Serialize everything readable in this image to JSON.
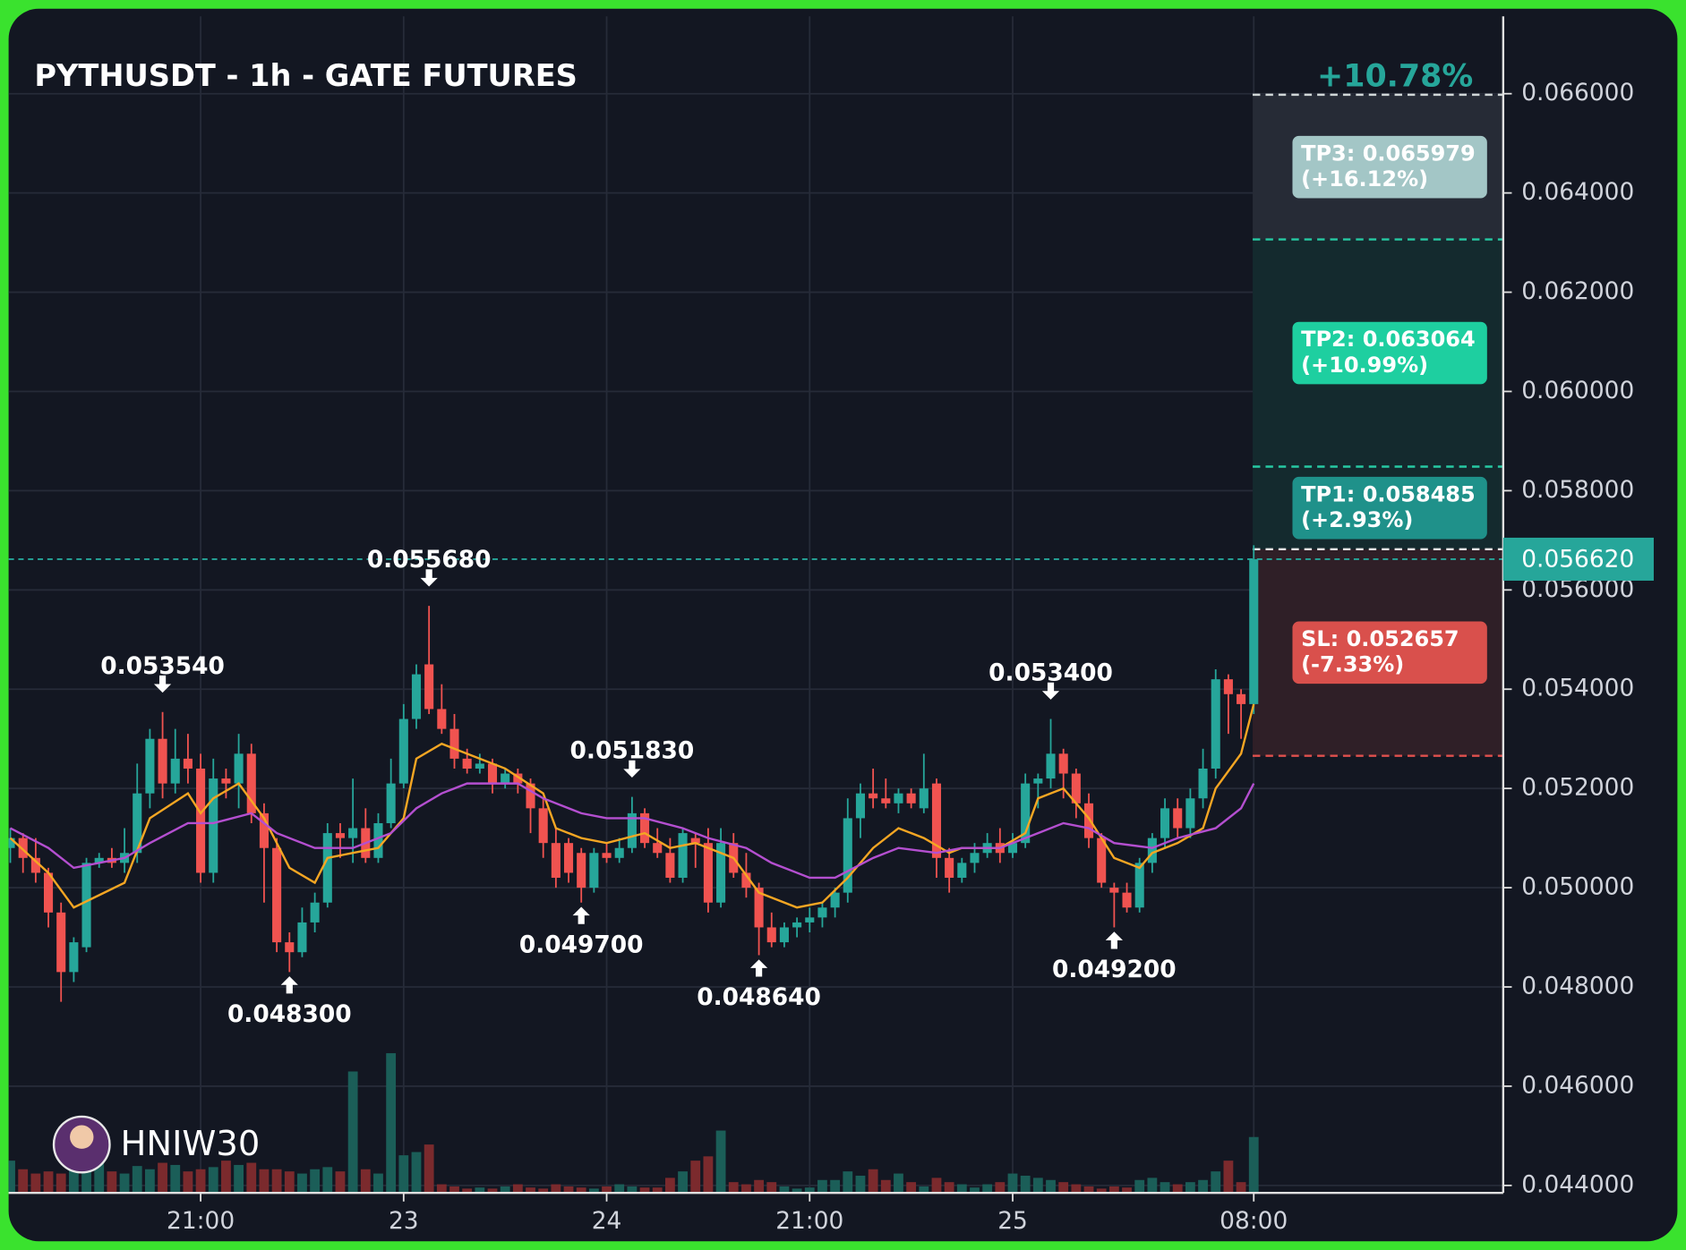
{
  "chart_data": {
    "type": "candlestick",
    "title": "PYTHUSDT - 1h - GATE FUTURES",
    "change_label": "+10.78%",
    "watermark": "HNIW30",
    "categories": [
      null,
      null,
      null,
      null,
      null,
      null,
      null,
      null,
      null,
      null,
      null,
      null,
      null,
      null,
      null,
      "21:00",
      null,
      null,
      null,
      null,
      null,
      null,
      null,
      null,
      null,
      null,
      null,
      null,
      null,
      null,
      null,
      "23",
      null,
      null,
      null,
      null,
      null,
      null,
      null,
      null,
      null,
      null,
      null,
      null,
      null,
      null,
      null,
      "24",
      null,
      null,
      null,
      null,
      null,
      null,
      null,
      null,
      null,
      null,
      null,
      null,
      null,
      null,
      null,
      "21:00",
      null,
      null,
      null,
      null,
      null,
      null,
      null,
      null,
      null,
      null,
      null,
      null,
      null,
      null,
      null,
      "25",
      null,
      null,
      null,
      null,
      null,
      null,
      null,
      null,
      null,
      null,
      null,
      null,
      null,
      null,
      null,
      null,
      null,
      null,
      "08:00"
    ],
    "open": [
      0.0508,
      0.051,
      0.0506,
      0.0503,
      0.0495,
      0.0483,
      0.0488,
      0.0505,
      0.0506,
      0.0505,
      0.0507,
      0.0519,
      0.053,
      0.0521,
      0.0526,
      0.0524,
      0.0503,
      0.0522,
      0.0521,
      0.0527,
      0.0515,
      0.0508,
      0.0489,
      0.0487,
      0.0493,
      0.0497,
      0.0511,
      0.051,
      0.0512,
      0.0506,
      0.0513,
      0.0521,
      0.0534,
      0.0545,
      0.0536,
      0.0532,
      0.0526,
      0.0524,
      0.0525,
      0.0521,
      0.0523,
      0.0521,
      0.0516,
      0.0509,
      0.0509,
      0.0507,
      0.05,
      0.0507,
      0.0506,
      0.0508,
      0.0515,
      0.0509,
      0.0507,
      0.0502,
      0.051,
      0.0509,
      0.0497,
      0.0509,
      0.0503,
      0.05,
      0.0492,
      0.0489,
      0.0492,
      0.0493,
      0.0494,
      0.0496,
      0.0499,
      0.0514,
      0.0519,
      0.0518,
      0.0517,
      0.0519,
      0.0516,
      0.0521,
      0.0506,
      0.0502,
      0.0505,
      0.0507,
      0.0509,
      0.0507,
      0.0509,
      0.0521,
      0.0522,
      0.0527,
      0.0523,
      0.0517,
      0.051,
      0.05,
      0.0499,
      0.0496,
      0.0505,
      0.051,
      0.0516,
      0.0512,
      0.0518,
      0.0524,
      0.0542,
      0.0539,
      0.0537
    ],
    "high": [
      0.0512,
      0.0511,
      0.051,
      0.0504,
      0.0497,
      0.049,
      0.0506,
      0.0507,
      0.0508,
      0.0512,
      0.0525,
      0.0532,
      0.05354,
      0.0532,
      0.0531,
      0.0527,
      0.0526,
      0.0524,
      0.0531,
      0.0529,
      0.0517,
      0.051,
      0.0491,
      0.0496,
      0.0499,
      0.0513,
      0.0513,
      0.0522,
      0.0516,
      0.0515,
      0.0526,
      0.0537,
      0.0545,
      0.05568,
      0.0541,
      0.0535,
      0.0528,
      0.0527,
      0.0526,
      0.0524,
      0.0524,
      0.0522,
      0.0518,
      0.0512,
      0.051,
      0.0508,
      0.0508,
      0.0509,
      0.051,
      0.05183,
      0.0516,
      0.0512,
      0.051,
      0.0512,
      0.0511,
      0.0512,
      0.0512,
      0.0511,
      0.0507,
      0.0501,
      0.0495,
      0.0493,
      0.0494,
      0.0496,
      0.0497,
      0.05,
      0.0518,
      0.0521,
      0.0524,
      0.0522,
      0.052,
      0.052,
      0.0527,
      0.0522,
      0.0508,
      0.0506,
      0.0509,
      0.0511,
      0.0512,
      0.0511,
      0.0523,
      0.0523,
      0.0534,
      0.0528,
      0.0524,
      0.0519,
      0.0511,
      0.0501,
      0.0501,
      0.0506,
      0.0511,
      0.0518,
      0.0518,
      0.052,
      0.0528,
      0.0544,
      0.0543,
      0.054,
      0.0569
    ],
    "low": [
      0.0505,
      0.0503,
      0.0501,
      0.0492,
      0.0477,
      0.0481,
      0.0487,
      0.0504,
      0.0504,
      0.0503,
      0.0505,
      0.0516,
      0.0518,
      0.0519,
      0.0521,
      0.0501,
      0.0501,
      0.0518,
      0.0516,
      0.0513,
      0.0497,
      0.0487,
      0.0483,
      0.0486,
      0.0491,
      0.0496,
      0.0506,
      0.0505,
      0.0505,
      0.0505,
      0.0512,
      0.052,
      0.0532,
      0.0535,
      0.0531,
      0.0524,
      0.0523,
      0.0523,
      0.0519,
      0.052,
      0.0519,
      0.0511,
      0.0506,
      0.05,
      0.0501,
      0.0497,
      0.0499,
      0.0505,
      0.0505,
      0.0507,
      0.0508,
      0.0506,
      0.0501,
      0.0501,
      0.0504,
      0.0495,
      0.0496,
      0.0502,
      0.0498,
      0.04864,
      0.0488,
      0.0488,
      0.049,
      0.0491,
      0.0492,
      0.0494,
      0.0497,
      0.051,
      0.0516,
      0.0516,
      0.0515,
      0.0516,
      0.0515,
      0.0502,
      0.0499,
      0.0501,
      0.0503,
      0.0506,
      0.0505,
      0.0506,
      0.0508,
      0.0516,
      0.052,
      0.0518,
      0.0514,
      0.0508,
      0.05,
      0.0492,
      0.0495,
      0.0495,
      0.0503,
      0.0508,
      0.051,
      0.051,
      0.0516,
      0.0522,
      0.0531,
      0.053,
      0.0535
    ],
    "close": [
      0.051,
      0.0506,
      0.0503,
      0.0495,
      0.0483,
      0.0489,
      0.0505,
      0.0506,
      0.0505,
      0.0507,
      0.0519,
      0.053,
      0.0521,
      0.0526,
      0.0524,
      0.0503,
      0.0522,
      0.0521,
      0.0527,
      0.0515,
      0.0508,
      0.0489,
      0.0487,
      0.0493,
      0.0497,
      0.0511,
      0.051,
      0.0512,
      0.0506,
      0.0513,
      0.0521,
      0.0534,
      0.0543,
      0.0536,
      0.0532,
      0.0526,
      0.0524,
      0.0525,
      0.0521,
      0.0523,
      0.0521,
      0.0516,
      0.0509,
      0.0502,
      0.0503,
      0.05,
      0.0507,
      0.0506,
      0.0508,
      0.0515,
      0.0509,
      0.0507,
      0.0502,
      0.0511,
      0.0509,
      0.0497,
      0.0509,
      0.0503,
      0.05,
      0.0492,
      0.0489,
      0.0492,
      0.0493,
      0.0494,
      0.0496,
      0.0499,
      0.0514,
      0.0519,
      0.0518,
      0.0517,
      0.0519,
      0.0517,
      0.052,
      0.0506,
      0.0502,
      0.0505,
      0.0507,
      0.0509,
      0.0507,
      0.0509,
      0.0521,
      0.0522,
      0.0527,
      0.0523,
      0.0517,
      0.051,
      0.0501,
      0.0499,
      0.0496,
      0.0505,
      0.051,
      0.0516,
      0.0512,
      0.0518,
      0.0524,
      0.0542,
      0.0539,
      0.0537,
      0.05662
    ],
    "volume": [
      30,
      22,
      18,
      20,
      18,
      30,
      22,
      28,
      20,
      18,
      25,
      22,
      28,
      26,
      20,
      22,
      24,
      30,
      26,
      28,
      22,
      22,
      20,
      18,
      22,
      24,
      20,
      113,
      22,
      18,
      130,
      35,
      38,
      45,
      8,
      6,
      4,
      5,
      4,
      6,
      8,
      5,
      4,
      8,
      6,
      5,
      4,
      6,
      8,
      6,
      5,
      5,
      14,
      20,
      30,
      34,
      58,
      10,
      8,
      12,
      10,
      6,
      4,
      5,
      12,
      12,
      20,
      16,
      22,
      12,
      18,
      10,
      6,
      14,
      10,
      8,
      5,
      8,
      10,
      18,
      16,
      14,
      12,
      10,
      8,
      6,
      4,
      6,
      5,
      12,
      14,
      10,
      8,
      10,
      12,
      20,
      30,
      10,
      52
    ],
    "up_color": "#26a69a",
    "down_color": "#f05350",
    "volume_up_color": "#1b5e58",
    "volume_down_color": "#7b2a2d",
    "moving_averages": [
      {
        "color": "#f5a623",
        "x": [
          0,
          3,
          5,
          9,
          11,
          14,
          15,
          16,
          18,
          20,
          22,
          24,
          25,
          27,
          29,
          31,
          32,
          34,
          36,
          39,
          42,
          43,
          45,
          47,
          50,
          52,
          54,
          57,
          59,
          62,
          64,
          66,
          68,
          70,
          72,
          74,
          75,
          78,
          80,
          81,
          83,
          85,
          87,
          89,
          90,
          92,
          94,
          95,
          97,
          98
        ],
        "values": [
          0.051,
          0.0503,
          0.0496,
          0.0501,
          0.0514,
          0.0519,
          0.0515,
          0.0518,
          0.0521,
          0.0514,
          0.0504,
          0.0501,
          0.0506,
          0.0507,
          0.0508,
          0.0514,
          0.0526,
          0.0529,
          0.0527,
          0.0524,
          0.0519,
          0.0512,
          0.051,
          0.0509,
          0.0511,
          0.0508,
          0.0509,
          0.0506,
          0.0499,
          0.0496,
          0.0497,
          0.0502,
          0.0508,
          0.0512,
          0.051,
          0.0507,
          0.0508,
          0.0508,
          0.0511,
          0.0518,
          0.052,
          0.0514,
          0.0506,
          0.0504,
          0.0507,
          0.0509,
          0.0512,
          0.052,
          0.0527,
          0.0537
        ]
      },
      {
        "color": "#b44fd0",
        "x": [
          0,
          3,
          5,
          9,
          11,
          14,
          16,
          19,
          21,
          24,
          27,
          30,
          32,
          34,
          36,
          40,
          42,
          45,
          47,
          50,
          53,
          55,
          58,
          60,
          63,
          65,
          68,
          70,
          73,
          75,
          78,
          81,
          83,
          85,
          87,
          90,
          92,
          95,
          97,
          98
        ],
        "values": [
          0.0512,
          0.0508,
          0.0504,
          0.0506,
          0.0509,
          0.0513,
          0.0513,
          0.0515,
          0.0511,
          0.0508,
          0.0508,
          0.0511,
          0.0516,
          0.0519,
          0.0521,
          0.0521,
          0.0518,
          0.0515,
          0.0514,
          0.0514,
          0.0512,
          0.051,
          0.0508,
          0.0505,
          0.0502,
          0.0502,
          0.0506,
          0.0508,
          0.0507,
          0.0508,
          0.0508,
          0.0511,
          0.0513,
          0.0512,
          0.0509,
          0.0508,
          0.051,
          0.0512,
          0.0516,
          0.0521
        ]
      }
    ],
    "annotations": [
      {
        "label": "0.053540",
        "value": 0.05354,
        "index": 12,
        "side": "high"
      },
      {
        "label": "0.048300",
        "value": 0.0483,
        "index": 22,
        "side": "low"
      },
      {
        "label": "0.055680",
        "value": 0.05568,
        "index": 33,
        "side": "high"
      },
      {
        "label": "0.049700",
        "value": 0.0497,
        "index": 45,
        "side": "low"
      },
      {
        "label": "0.051830",
        "value": 0.05183,
        "index": 49,
        "side": "high"
      },
      {
        "label": "0.048640",
        "value": 0.04864,
        "index": 59,
        "side": "low"
      },
      {
        "label": "0.053400",
        "value": 0.0534,
        "index": 82,
        "side": "high"
      },
      {
        "label": "0.049200",
        "value": 0.0492,
        "index": 87,
        "side": "low"
      }
    ],
    "entry": 0.05682,
    "entry_color": "#e6e6e6",
    "levels": [
      {
        "label": "TP3: 0.065979",
        "note": "(+16.12%)",
        "value": 0.065979,
        "line_color": "#cfd6d6",
        "box_color": "#a3c6c6",
        "zone_color": "#262b36"
      },
      {
        "label": "TP2: 0.063064",
        "note": "(+10.99%)",
        "value": 0.063064,
        "line_color": "#26c9a4",
        "box_color": "#1ecfa0",
        "zone_color": "#142a2e"
      },
      {
        "label": "TP1: 0.058485",
        "note": "(+2.93%)",
        "value": 0.058485,
        "line_color": "#26c9a4",
        "box_color": "#1f918a",
        "zone_color": "#142a2e"
      },
      {
        "label": "SL: 0.052657",
        "note": "(-7.33%)",
        "value": 0.052657,
        "line_color": "#e0504d",
        "box_color": "#d9504c",
        "zone_color": "#2f1f27"
      }
    ],
    "last_price": {
      "value": 0.05662,
      "label": "0.056620"
    },
    "last_price_color": "#26a69a",
    "ylim": [
      0.04385,
      0.06756
    ],
    "yticks": [
      {
        "value": 0.044,
        "label": "0.044000"
      },
      {
        "value": 0.046,
        "label": "0.046000"
      },
      {
        "value": 0.048,
        "label": "0.048000"
      },
      {
        "value": 0.05,
        "label": "0.050000"
      },
      {
        "value": 0.052,
        "label": "0.052000"
      },
      {
        "value": 0.054,
        "label": "0.054000"
      },
      {
        "value": 0.056,
        "label": "0.056000"
      },
      {
        "value": 0.058,
        "label": "0.058000"
      },
      {
        "value": 0.06,
        "label": "0.060000"
      },
      {
        "value": 0.062,
        "label": "0.062000"
      },
      {
        "value": 0.064,
        "label": "0.064000"
      },
      {
        "value": 0.066,
        "label": "0.066000"
      }
    ],
    "grid": true
  }
}
